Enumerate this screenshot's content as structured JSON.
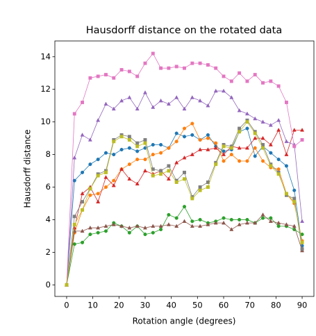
{
  "chart_data": {
    "type": "line",
    "title": "Hausdorff distance on the rotated data",
    "x_label": "Rotation angle (degrees)",
    "y_label": "Hausdorff distance",
    "x": [
      0,
      3,
      6,
      9,
      12,
      15,
      18,
      21,
      24,
      27,
      30,
      33,
      36,
      39,
      42,
      45,
      48,
      51,
      54,
      57,
      60,
      63,
      66,
      69,
      72,
      75,
      78,
      81,
      84,
      87,
      90
    ],
    "xlim": [
      -4.5,
      94.5
    ],
    "xticks": [
      0,
      10,
      20,
      30,
      40,
      50,
      60,
      70,
      80,
      90
    ],
    "ylim": [
      -0.71,
      14.97
    ],
    "yticks": [
      0,
      2,
      4,
      6,
      8,
      10,
      12,
      14
    ],
    "series": [
      {
        "color": "#1f77b4",
        "marker": "circle",
        "values": [
          0,
          6.4,
          6.9,
          7.4,
          7.7,
          8.1,
          8.0,
          8.3,
          8.4,
          8.2,
          8.4,
          8.6,
          8.6,
          8.4,
          9.3,
          9.1,
          9.2,
          8.9,
          9.2,
          8.5,
          8.2,
          8.3,
          9.4,
          9.6,
          7.9,
          8.5,
          8.1,
          7.7,
          7.3,
          5.8,
          2.4
        ]
      },
      {
        "color": "#ff7f0e",
        "marker": "circle",
        "values": [
          0,
          3.2,
          4.6,
          5.5,
          5.6,
          6.0,
          6.4,
          7.1,
          7.4,
          7.7,
          7.7,
          8.0,
          8.1,
          8.4,
          8.8,
          9.6,
          9.9,
          8.9,
          9.0,
          8.7,
          7.6,
          8.0,
          7.6,
          7.6,
          8.4,
          7.6,
          7.2,
          7.1,
          5.6,
          5.0,
          2.7
        ]
      },
      {
        "color": "#2ca02c",
        "marker": "circle",
        "values": [
          0,
          2.5,
          2.6,
          3.1,
          3.2,
          3.3,
          3.8,
          3.6,
          3.2,
          3.6,
          3.1,
          3.2,
          3.4,
          4.3,
          4.1,
          4.8,
          3.9,
          4.0,
          3.8,
          3.9,
          4.1,
          4.0,
          4.0,
          4.0,
          3.8,
          4.1,
          4.1,
          3.6,
          3.6,
          3.4,
          3.1
        ]
      },
      {
        "color": "#d62728",
        "marker": "triangle",
        "values": [
          0,
          3.5,
          5.6,
          6.0,
          5.1,
          6.6,
          6.1,
          7.1,
          6.5,
          6.2,
          7.0,
          6.8,
          7.0,
          6.5,
          7.5,
          7.8,
          8.0,
          8.3,
          8.3,
          8.4,
          8.0,
          8.5,
          8.4,
          8.4,
          9.0,
          9.0,
          8.6,
          9.5,
          8.0,
          9.5,
          9.5
        ]
      },
      {
        "color": "#9467bd",
        "marker": "triangle",
        "values": [
          0,
          7.8,
          9.2,
          8.9,
          10.1,
          11.1,
          10.8,
          11.3,
          11.5,
          10.8,
          11.8,
          10.9,
          11.3,
          11.1,
          11.5,
          10.8,
          11.5,
          11.3,
          11.0,
          11.9,
          11.9,
          11.5,
          10.7,
          10.5,
          10.2,
          10.0,
          9.8,
          10.1,
          8.8,
          8.6,
          3.9
        ]
      },
      {
        "color": "#8c564b",
        "marker": "triangle",
        "values": [
          0,
          3.3,
          3.3,
          3.5,
          3.5,
          3.6,
          3.7,
          3.6,
          3.5,
          3.6,
          3.5,
          3.6,
          3.6,
          3.7,
          3.6,
          3.9,
          3.6,
          3.6,
          3.7,
          3.8,
          3.8,
          3.4,
          3.7,
          3.8,
          3.8,
          4.3,
          3.9,
          3.8,
          3.7,
          3.6,
          2.1
        ]
      },
      {
        "color": "#e377c2",
        "marker": "square",
        "values": [
          0,
          10.5,
          11.2,
          12.7,
          12.8,
          12.9,
          12.7,
          13.2,
          13.1,
          12.8,
          13.6,
          14.2,
          13.3,
          13.3,
          13.4,
          13.3,
          13.6,
          13.6,
          13.5,
          13.3,
          12.8,
          12.5,
          13.0,
          12.5,
          12.9,
          12.4,
          12.5,
          12.2,
          11.2,
          8.5,
          8.9
        ]
      },
      {
        "color": "#7f7f7f",
        "marker": "square",
        "values": [
          0,
          4.2,
          5.1,
          5.9,
          6.8,
          7.0,
          8.9,
          9.2,
          9.1,
          8.7,
          8.9,
          7.1,
          7.0,
          7.3,
          6.4,
          6.9,
          5.4,
          6.0,
          6.3,
          7.5,
          8.6,
          8.5,
          9.6,
          10.1,
          9.4,
          8.6,
          7.4,
          6.9,
          5.5,
          5.3,
          2.2
        ]
      },
      {
        "color": "#bcbd22",
        "marker": "square",
        "values": [
          0,
          3.7,
          4.6,
          5.9,
          6.7,
          6.9,
          8.8,
          9.1,
          8.9,
          8.5,
          8.7,
          6.7,
          6.8,
          7.0,
          6.3,
          6.5,
          5.3,
          5.8,
          6.0,
          7.4,
          8.5,
          8.4,
          9.4,
          10.0,
          9.3,
          8.4,
          7.3,
          6.8,
          5.6,
          5.1,
          2.6
        ]
      }
    ]
  }
}
